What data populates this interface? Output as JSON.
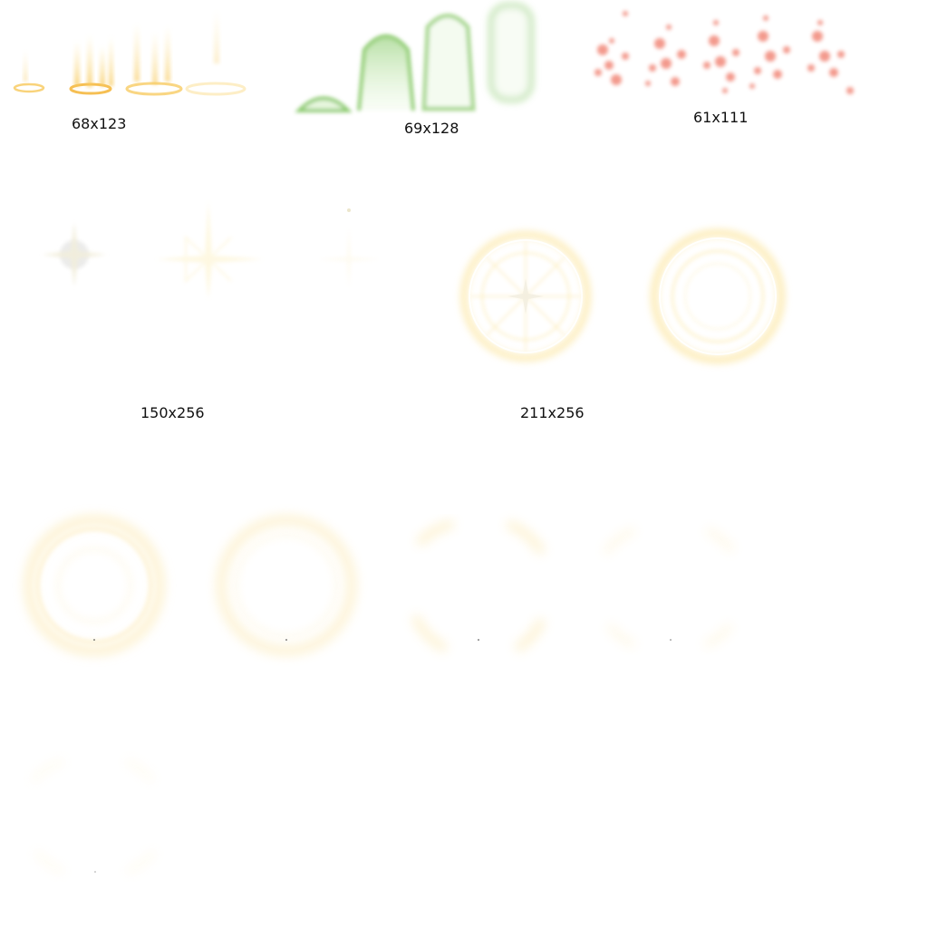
{
  "labels": {
    "group_1": "68x123",
    "group_2": "69x128",
    "group_3": "61x111",
    "group_4": "150x256",
    "group_5": "211x256"
  },
  "colors": {
    "background": "#ffffff",
    "label_text": "#111111",
    "gold_glow": "#f7c85a",
    "gold_pale": "#fde9a6",
    "green_glow": "#7cc35a",
    "red_particle": "#f08070",
    "cream": "#fff6d8",
    "grey_star": "#e6e6e6"
  },
  "sprites": {
    "rising_rings": "gold-rising-ring-icon",
    "green_pillars": "green-pillar-icon",
    "red_sparks": "red-spark-particle-icon",
    "star_flash": "star-flash-icon",
    "magic_circle": "magic-circle-icon",
    "fading_ring": "fading-glow-ring-icon"
  }
}
